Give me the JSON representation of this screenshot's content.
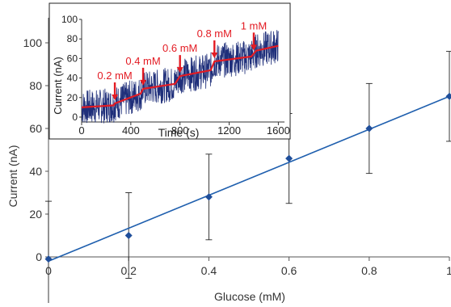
{
  "chart_data": [
    {
      "type": "scatter",
      "xlabel": "Glucose (mM)",
      "ylabel": "Current (nA)",
      "xlim": [
        0,
        1
      ],
      "ylim": [
        0,
        120
      ],
      "x_ticks": [
        "0",
        "0.2",
        "0.4",
        "0.6",
        "0.8",
        "1"
      ],
      "y_ticks": [
        "0",
        "20",
        "40",
        "60",
        "80",
        "100"
      ],
      "grid": false,
      "series": [
        {
          "x": [
            0,
            0.2,
            0.4,
            0.6,
            0.8,
            1.0
          ],
          "y": [
            -1,
            10,
            28,
            46,
            60,
            75
          ],
          "error": [
            27,
            20,
            20,
            21,
            21,
            21
          ]
        }
      ],
      "fit_line": {
        "x": [
          0,
          1.0
        ],
        "y": [
          -2,
          75
        ]
      },
      "colors": {
        "points": "#1f4e9a",
        "fit": "#1f5fae",
        "error_bars": "#222222",
        "axis": "#555555"
      }
    },
    {
      "type": "line",
      "xlabel": "Time (s)",
      "ylabel": "Current (nA)",
      "xlim": [
        0,
        1650
      ],
      "ylim": [
        -5,
        100
      ],
      "x_ticks": [
        "0",
        "400",
        "800",
        "1200",
        "1600"
      ],
      "y_ticks": [
        "0",
        "20",
        "40",
        "60",
        "80",
        "100"
      ],
      "grid": false,
      "series": [
        {
          "x": [
            0,
            260,
            270,
            480,
            500,
            760,
            800,
            1050,
            1080,
            1380,
            1420,
            1600
          ],
          "y": [
            10,
            12,
            14,
            24,
            29,
            34,
            42,
            48,
            57,
            62,
            68,
            73
          ]
        }
      ],
      "noise_amplitude": 18,
      "annotations": [
        {
          "text": "0.2 mM",
          "x": 270
        },
        {
          "text": "0.4 mM",
          "x": 500
        },
        {
          "text": "0.6 mM",
          "x": 800
        },
        {
          "text": "0.8 mM",
          "x": 1080
        },
        {
          "text": "1 mM",
          "x": 1400
        }
      ],
      "colors": {
        "raw": "#1f2f7a",
        "smoothed": "#e31b23",
        "annotation": "#e31b23",
        "axis": "#333333"
      }
    }
  ]
}
